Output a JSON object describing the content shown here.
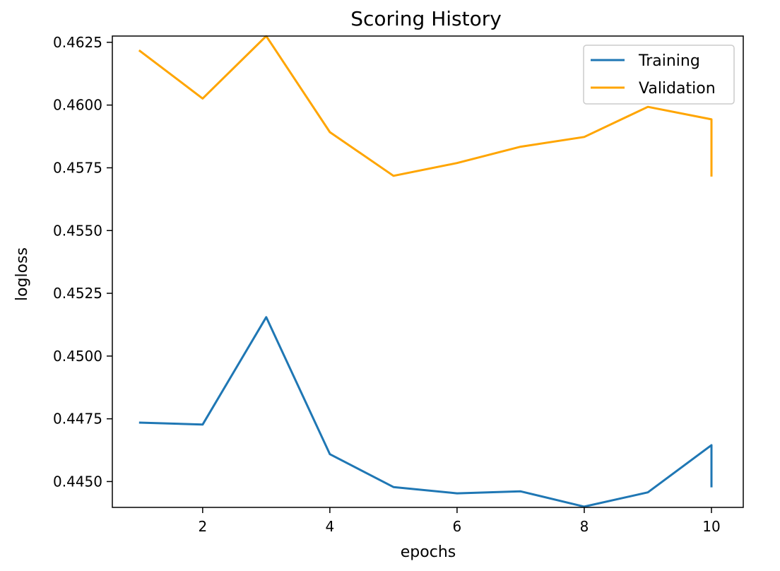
{
  "chart_data": {
    "type": "line",
    "title": "Scoring History",
    "xlabel": "epochs",
    "ylabel": "logloss",
    "xlim": [
      0.58,
      10.5
    ],
    "ylim": [
      0.44397,
      0.46275
    ],
    "xticks": [
      2,
      4,
      6,
      8,
      10
    ],
    "xtick_labels": [
      "2",
      "4",
      "6",
      "8",
      "10"
    ],
    "yticks": [
      0.445,
      0.4475,
      0.45,
      0.4525,
      0.455,
      0.4575,
      0.46,
      0.4625
    ],
    "ytick_labels": [
      "0.4450",
      "0.4475",
      "0.4500",
      "0.4525",
      "0.4550",
      "0.4575",
      "0.4600",
      "0.4625"
    ],
    "grid": false,
    "legend_position": "top-right",
    "series": [
      {
        "name": "Training",
        "color": "#1f77b4",
        "x": [
          1,
          2,
          3,
          4,
          5,
          6,
          7,
          8,
          9,
          10,
          10
        ],
        "y": [
          0.44735,
          0.44727,
          0.45155,
          0.44609,
          0.44478,
          0.44453,
          0.44461,
          0.444,
          0.44457,
          0.44645,
          0.44477
        ]
      },
      {
        "name": "Validation",
        "color": "#ffa500",
        "x": [
          1,
          2,
          3,
          4,
          5,
          6,
          7,
          8,
          9,
          10,
          10
        ],
        "y": [
          0.46218,
          0.46026,
          0.46275,
          0.45892,
          0.45718,
          0.45769,
          0.45834,
          0.45873,
          0.45993,
          0.45943,
          0.45715
        ]
      }
    ]
  }
}
